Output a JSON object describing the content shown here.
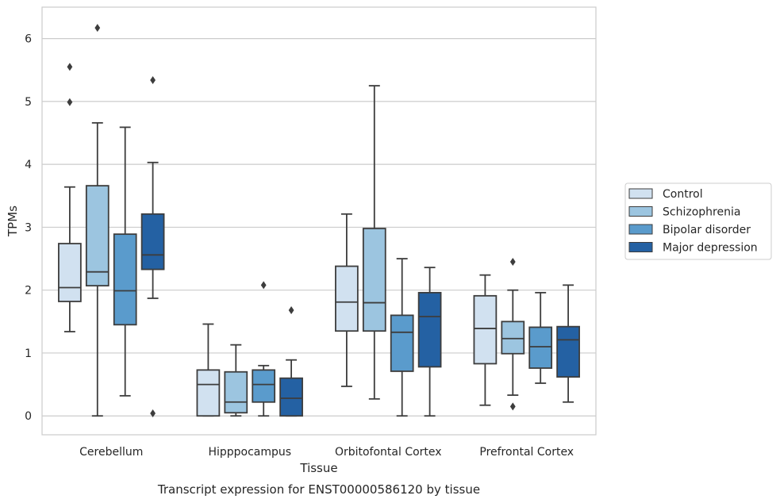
{
  "caption": "Transcript expression for ENST00000586120 by tissue",
  "chart_data": {
    "type": "box",
    "title": "",
    "xlabel": "Tissue",
    "ylabel": "TPMs",
    "ylim": [
      -0.3,
      6.5
    ],
    "yticks": [
      0,
      1,
      2,
      3,
      4,
      5,
      6
    ],
    "grid": "horizontal",
    "legend_position": "right",
    "categories": [
      "Cerebellum",
      "Hipppocampus",
      "Orbitofontal Cortex",
      "Prefrontal Cortex"
    ],
    "series": [
      {
        "name": "Control",
        "color": "#d1e1f0",
        "boxes": [
          {
            "whisker_low": 1.34,
            "q1": 1.82,
            "median": 2.04,
            "q3": 2.74,
            "whisker_high": 3.64,
            "outliers": [
              5.55,
              4.99
            ]
          },
          {
            "whisker_low": 0.0,
            "q1": 0.0,
            "median": 0.5,
            "q3": 0.73,
            "whisker_high": 1.46,
            "outliers": []
          },
          {
            "whisker_low": 0.47,
            "q1": 1.35,
            "median": 1.81,
            "q3": 2.38,
            "whisker_high": 3.21,
            "outliers": []
          },
          {
            "whisker_low": 0.17,
            "q1": 0.83,
            "median": 1.39,
            "q3": 1.91,
            "whisker_high": 2.24,
            "outliers": []
          }
        ]
      },
      {
        "name": "Schizophrenia",
        "color": "#9cc5e0",
        "boxes": [
          {
            "whisker_low": 0.0,
            "q1": 2.07,
            "median": 2.29,
            "q3": 3.66,
            "whisker_high": 4.66,
            "outliers": [
              6.17
            ]
          },
          {
            "whisker_low": 0.0,
            "q1": 0.05,
            "median": 0.22,
            "q3": 0.7,
            "whisker_high": 1.13,
            "outliers": []
          },
          {
            "whisker_low": 0.27,
            "q1": 1.35,
            "median": 1.8,
            "q3": 2.98,
            "whisker_high": 5.25,
            "outliers": []
          },
          {
            "whisker_low": 0.33,
            "q1": 0.99,
            "median": 1.23,
            "q3": 1.5,
            "whisker_high": 2.0,
            "outliers": [
              2.45,
              0.15
            ]
          }
        ]
      },
      {
        "name": "Bipolar disorder",
        "color": "#5a9bcc",
        "boxes": [
          {
            "whisker_low": 0.32,
            "q1": 1.45,
            "median": 1.99,
            "q3": 2.89,
            "whisker_high": 4.59,
            "outliers": []
          },
          {
            "whisker_low": 0.0,
            "q1": 0.22,
            "median": 0.5,
            "q3": 0.73,
            "whisker_high": 0.8,
            "outliers": [
              2.08
            ]
          },
          {
            "whisker_low": 0.0,
            "q1": 0.71,
            "median": 1.33,
            "q3": 1.6,
            "whisker_high": 2.5,
            "outliers": []
          },
          {
            "whisker_low": 0.52,
            "q1": 0.76,
            "median": 1.1,
            "q3": 1.41,
            "whisker_high": 1.96,
            "outliers": []
          }
        ]
      },
      {
        "name": "Major depression",
        "color": "#2461a3",
        "boxes": [
          {
            "whisker_low": 1.87,
            "q1": 2.33,
            "median": 2.56,
            "q3": 3.21,
            "whisker_high": 4.03,
            "outliers": [
              5.34,
              0.04
            ]
          },
          {
            "whisker_low": 0.0,
            "q1": 0.0,
            "median": 0.28,
            "q3": 0.6,
            "whisker_high": 0.89,
            "outliers": [
              1.68
            ]
          },
          {
            "whisker_low": 0.0,
            "q1": 0.78,
            "median": 1.58,
            "q3": 1.96,
            "whisker_high": 2.36,
            "outliers": []
          },
          {
            "whisker_low": 0.22,
            "q1": 0.62,
            "median": 1.21,
            "q3": 1.42,
            "whisker_high": 2.08,
            "outliers": []
          }
        ]
      }
    ]
  }
}
